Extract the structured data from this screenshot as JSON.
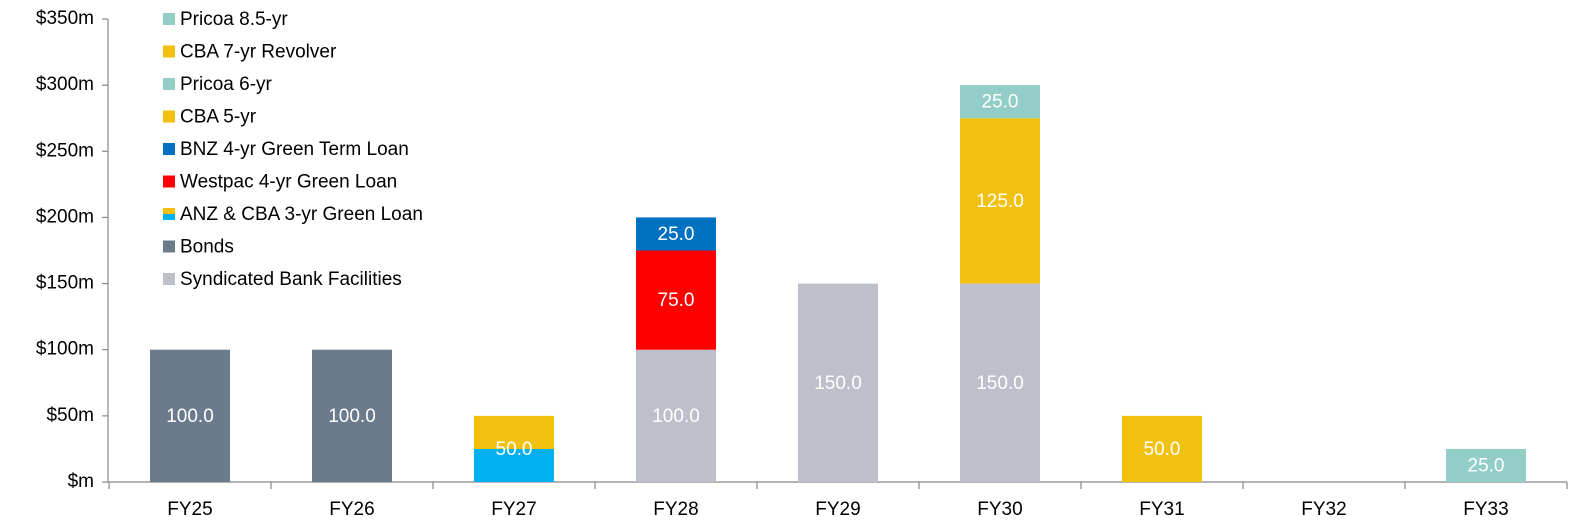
{
  "chart_data": {
    "type": "bar",
    "stacked": true,
    "categories": [
      "FY25",
      "FY26",
      "FY27",
      "FY28",
      "FY29",
      "FY30",
      "FY31",
      "FY32",
      "FY33"
    ],
    "series": [
      {
        "name": "Syndicated Bank Facilities",
        "color": "#bdc0cb",
        "values": [
          null,
          null,
          null,
          100,
          150,
          150,
          null,
          null,
          null
        ],
        "value_labels": [
          null,
          null,
          null,
          "100.0",
          "150.0",
          "150.0",
          null,
          null,
          null
        ]
      },
      {
        "name": "Bonds",
        "color": "#6b7b8c",
        "values": [
          100,
          100,
          null,
          null,
          null,
          null,
          null,
          null,
          null
        ],
        "value_labels": [
          "100.0",
          "100.0",
          null,
          null,
          null,
          null,
          null,
          null,
          null
        ]
      },
      {
        "name": "ANZ & CBA 3-yr Green Loan",
        "color": [
          "#00b0f0",
          "#f2c10f"
        ],
        "values": [
          null,
          null,
          50,
          null,
          null,
          null,
          null,
          null,
          null
        ],
        "value_labels": [
          null,
          null,
          "50.0",
          null,
          null,
          null,
          null,
          null,
          null
        ]
      },
      {
        "name": "Westpac 4-yr Green Loan",
        "color": "#ff0000",
        "values": [
          null,
          null,
          null,
          75,
          null,
          null,
          null,
          null,
          null
        ],
        "value_labels": [
          null,
          null,
          null,
          "75.0",
          null,
          null,
          null,
          null,
          null
        ]
      },
      {
        "name": "BNZ 4-yr Green Term Loan",
        "color": "#0070c0",
        "values": [
          null,
          null,
          null,
          25,
          null,
          null,
          null,
          null,
          null
        ],
        "value_labels": [
          null,
          null,
          null,
          "25.0",
          null,
          null,
          null,
          null,
          null
        ]
      },
      {
        "name": "CBA 5-yr",
        "color": "#f2c10f",
        "values": [
          null,
          null,
          null,
          null,
          null,
          125,
          null,
          null,
          null
        ],
        "value_labels": [
          null,
          null,
          null,
          null,
          null,
          "125.0",
          null,
          null,
          null
        ]
      },
      {
        "name": "Pricoa 6-yr",
        "color": "#92cdc8",
        "values": [
          null,
          null,
          null,
          null,
          null,
          25,
          null,
          null,
          null
        ],
        "value_labels": [
          null,
          null,
          null,
          null,
          null,
          "25.0",
          null,
          null,
          null
        ]
      },
      {
        "name": "CBA 7-yr Revolver",
        "color": "#f2c10f",
        "values": [
          null,
          null,
          null,
          null,
          null,
          null,
          50,
          null,
          null
        ],
        "value_labels": [
          null,
          null,
          null,
          null,
          null,
          null,
          "50.0",
          null,
          null
        ]
      },
      {
        "name": "Pricoa 8.5-yr",
        "color": "#92cdc8",
        "values": [
          null,
          null,
          null,
          null,
          null,
          null,
          null,
          null,
          25
        ],
        "value_labels": [
          null,
          null,
          null,
          null,
          null,
          null,
          null,
          null,
          "25.0"
        ]
      }
    ],
    "ylim": [
      0,
      350
    ],
    "yticks": [
      {
        "value": 0,
        "label": "$m"
      },
      {
        "value": 50,
        "label": "$50m"
      },
      {
        "value": 100,
        "label": "$100m"
      },
      {
        "value": 150,
        "label": "$150m"
      },
      {
        "value": 200,
        "label": "$200m"
      },
      {
        "value": 250,
        "label": "$250m"
      },
      {
        "value": 300,
        "label": "$300m"
      },
      {
        "value": 350,
        "label": "$350m"
      }
    ],
    "legend": "upper left"
  }
}
